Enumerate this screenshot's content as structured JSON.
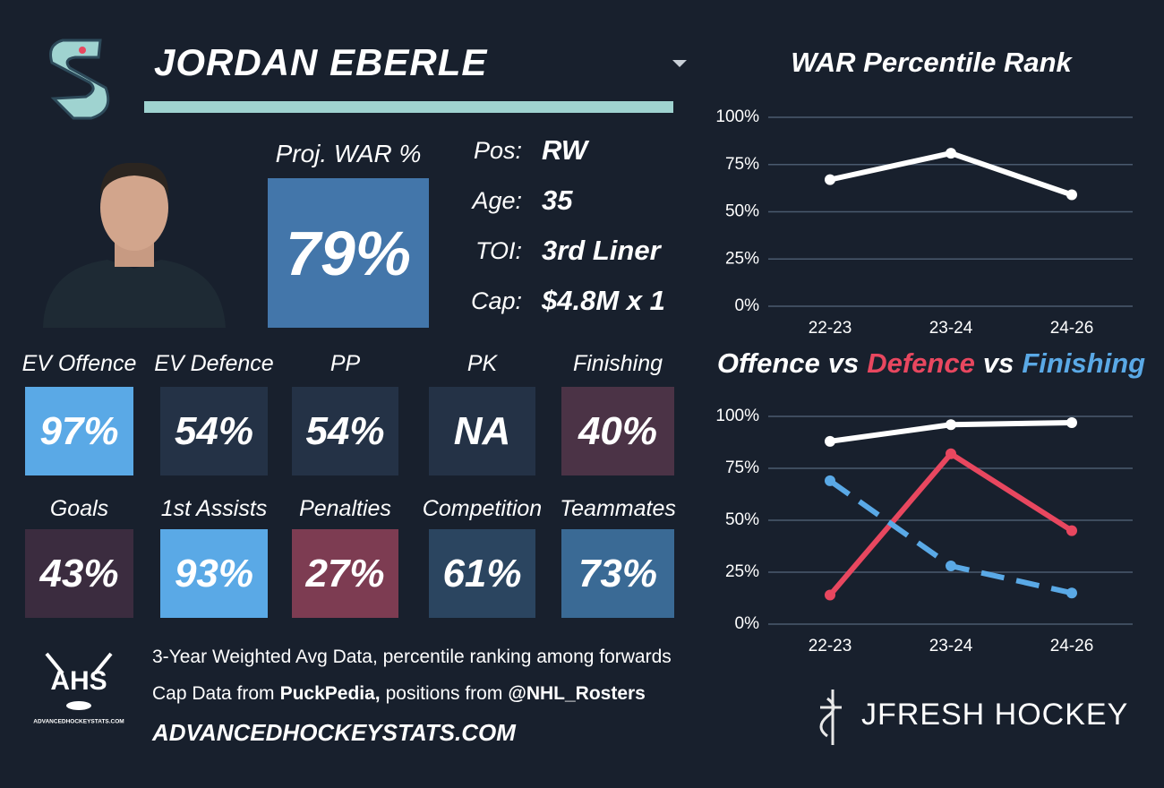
{
  "header": {
    "name": "JORDAN EBERLE"
  },
  "proj_war": {
    "label": "Proj. WAR %",
    "value": "79%",
    "color": "#4376aa"
  },
  "info": [
    {
      "label": "Pos:",
      "value": "RW"
    },
    {
      "label": "Age:",
      "value": "35"
    },
    {
      "label": "TOI:",
      "value": "3rd Liner"
    },
    {
      "label": "Cap:",
      "value": "$4.8M x 1"
    }
  ],
  "tiles": [
    {
      "label": "EV Offence",
      "value": "97%",
      "color": "#5aa9e6"
    },
    {
      "label": "EV Defence",
      "value": "54%",
      "color": "#243246"
    },
    {
      "label": "PP",
      "value": "54%",
      "color": "#243246"
    },
    {
      "label": "PK",
      "value": "NA",
      "color": "#243246"
    },
    {
      "label": "Finishing",
      "value": "40%",
      "color": "#4b3346"
    },
    {
      "label": "Goals",
      "value": "43%",
      "color": "#3b2c3f"
    },
    {
      "label": "1st Assists",
      "value": "93%",
      "color": "#5aa9e6"
    },
    {
      "label": "Penalties",
      "value": "27%",
      "color": "#7d3c52"
    },
    {
      "label": "Competition",
      "value": "61%",
      "color": "#2b4560"
    },
    {
      "label": "Teammates",
      "value": "73%",
      "color": "#3a6a95"
    }
  ],
  "footer": {
    "line1": "3-Year Weighted Avg Data, percentile ranking among forwards",
    "line2": [
      "Cap Data from",
      "PuckPedia,",
      "positions from",
      "@NHL_Rosters"
    ],
    "website": "ADVANCEDHOCKEYSTATS.COM"
  },
  "logos": {
    "ahs": "AHS",
    "ahs_sub": "ADVANCEDHOCKEYSTATS.COM",
    "brand": "JFRESH HOCKEY"
  },
  "chart_data": [
    {
      "type": "line",
      "title": "WAR Percentile Rank",
      "categories": [
        "22-23",
        "23-24",
        "24-26"
      ],
      "values": [
        67,
        81,
        59
      ],
      "color": "#ffffff",
      "ylim": [
        0,
        100
      ],
      "yticks": [
        {
          "value": 0,
          "label": "0%"
        },
        {
          "value": 25,
          "label": "25%"
        },
        {
          "value": 50,
          "label": "50%"
        },
        {
          "value": 75,
          "label": "75%"
        },
        {
          "value": 100,
          "label": "100%"
        }
      ],
      "grid": true
    },
    {
      "type": "line",
      "title": [
        "Offence",
        "vs",
        "Defence",
        "vs",
        "Finishing"
      ],
      "categories": [
        "22-23",
        "23-24",
        "24-26"
      ],
      "series": [
        {
          "name": "Offence",
          "color": "#ffffff",
          "values": [
            88,
            96,
            97
          ]
        },
        {
          "name": "Defence",
          "color": "#e8475f",
          "values": [
            14,
            82,
            45
          ]
        },
        {
          "name": "Finishing",
          "color": "#5aa9e6",
          "values": [
            69,
            28,
            15
          ],
          "dashed": true
        }
      ],
      "ylim": [
        0,
        100
      ],
      "yticks": [
        {
          "value": 0,
          "label": "0%"
        },
        {
          "value": 25,
          "label": "25%"
        },
        {
          "value": 50,
          "label": "50%"
        },
        {
          "value": 75,
          "label": "75%"
        },
        {
          "value": 100,
          "label": "100%"
        }
      ],
      "grid": true
    }
  ]
}
